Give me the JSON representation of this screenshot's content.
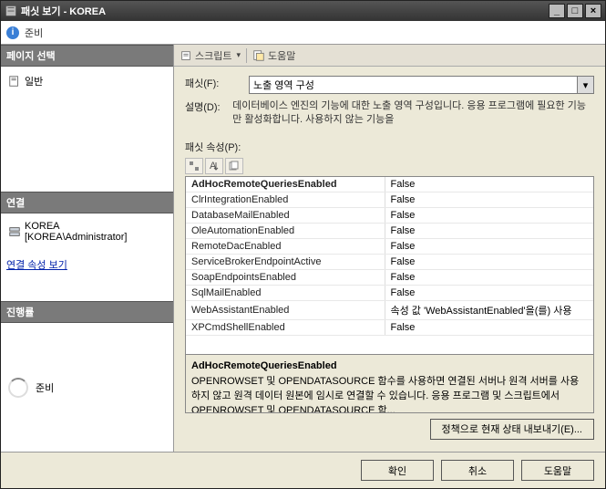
{
  "window": {
    "title": "패싯 보기 - KOREA",
    "buttons": {
      "min": "_",
      "max": "□",
      "close": "×"
    }
  },
  "colors": {
    "panel_header_bg": "#7a7a7a",
    "accent": "#0020aa"
  },
  "top_status": {
    "label": "준비"
  },
  "left": {
    "page_select_header": "페이지 선택",
    "page_general": "일반",
    "conn_header": "연결",
    "server_name": "KOREA",
    "server_user": "[KOREA\\Administrator]",
    "conn_link": "연결 속성 보기",
    "progress_header": "진행률",
    "progress_status": "준비"
  },
  "toolbar": {
    "script": "스크립트",
    "help": "도움말"
  },
  "form": {
    "facet_label": "패싯(F):",
    "facet_value": "노출 영역 구성",
    "desc_label": "설명(D):",
    "desc_text": "데이터베이스 엔진의 기능에 대한 노출 영역 구성입니다. 응용 프로그램에 필요한 기능만 활성화합니다. 사용하지 않는 기능을",
    "props_label": "패싯 속성(P):"
  },
  "properties": {
    "columns": [
      "name",
      "value"
    ],
    "rows": [
      {
        "name": "AdHocRemoteQueriesEnabled",
        "value": "False",
        "selected": true
      },
      {
        "name": "ClrIntegrationEnabled",
        "value": "False"
      },
      {
        "name": "DatabaseMailEnabled",
        "value": "False"
      },
      {
        "name": "OleAutomationEnabled",
        "value": "False"
      },
      {
        "name": "RemoteDacEnabled",
        "value": "False"
      },
      {
        "name": "ServiceBrokerEndpointActive",
        "value": "False"
      },
      {
        "name": "SoapEndpointsEnabled",
        "value": "False"
      },
      {
        "name": "SqlMailEnabled",
        "value": "False"
      },
      {
        "name": "WebAssistantEnabled",
        "value": "속성 값 'WebAssistantEnabled'을(를) 사용"
      },
      {
        "name": "XPCmdShellEnabled",
        "value": "False"
      }
    ],
    "desc_title": "AdHocRemoteQueriesEnabled",
    "desc_body": "OPENROWSET 및 OPENDATASOURCE 함수를 사용하면 연결된 서버나 원격 서버를 사용하지 않고 원격 데이터 원본에 임시로 연결할 수 있습니다. 응용 프로그램 및 스크립트에서 OPENROWSET 및 OPENDATASOURCE 함..."
  },
  "export_btn": "정책으로 현재 상태 내보내기(E)...",
  "bottom": {
    "ok": "확인",
    "cancel": "취소",
    "help": "도움말"
  }
}
